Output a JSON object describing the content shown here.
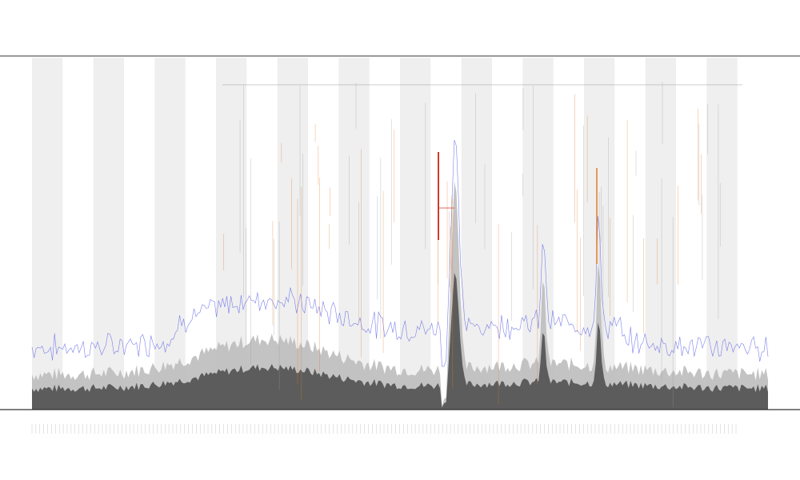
{
  "chart_data": {
    "type": "area",
    "title": "",
    "subtitles": [],
    "xlabel": "",
    "ylabel": "",
    "legend_placement": "left",
    "grid": false,
    "ylim": [
      0,
      1
    ],
    "x_count": 360,
    "shaded_bands": 12,
    "series": [
      {
        "values_note": "",
        "values": []
      }
    ],
    "colors": {
      "band": "#efefef",
      "area_dark": "#3a3a3a",
      "area_light": "#bdbdbd",
      "blue_line": "#5c62e6",
      "orange": "#e27a2a",
      "red": "#d43a2a",
      "axis": "#333333"
    },
    "annotations": {
      "row_labels": [],
      "text_columns": []
    }
  }
}
